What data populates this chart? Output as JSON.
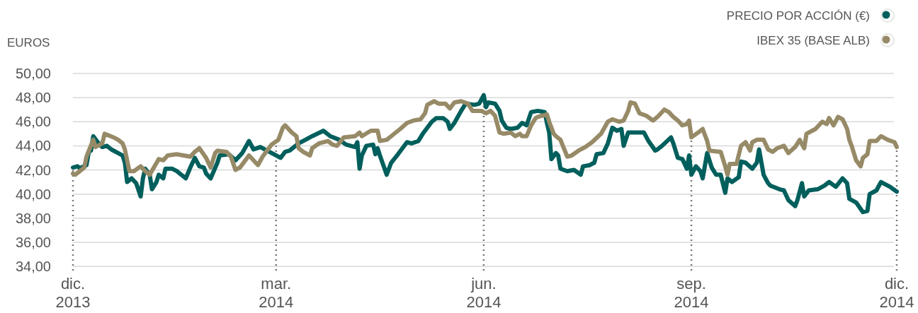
{
  "chart_data": {
    "type": "line",
    "ylabel": "EUROS",
    "legend": "top right",
    "grid": "y",
    "line_style": "solid",
    "marker": "none",
    "xlim": [
      "2013-12-01",
      "2014-12-01"
    ],
    "xticks": [
      {
        "value": "2013-12-01",
        "label": "dic. 2013"
      },
      {
        "value": "2014-03-01",
        "label": "mar. 2014"
      },
      {
        "value": "2014-06-01",
        "label": "jun. 2014"
      },
      {
        "value": "2014-09-01",
        "label": "sep. 2014"
      },
      {
        "value": "2014-12-01",
        "label": "dic. 2014"
      }
    ],
    "ref_lines": [
      {
        "axis": "x",
        "value": "2013-12-01",
        "color": "#777777",
        "line_style": "dotted"
      },
      {
        "axis": "x",
        "value": "2014-03-01",
        "color": "#777777",
        "line_style": "dotted"
      },
      {
        "axis": "x",
        "value": "2014-06-01",
        "color": "#777777",
        "line_style": "dotted"
      },
      {
        "axis": "x",
        "value": "2014-09-01",
        "color": "#777777",
        "line_style": "dotted"
      },
      {
        "axis": "x",
        "value": "2014-12-01",
        "color": "#777777",
        "line_style": "dotted"
      }
    ],
    "ylim": [
      34,
      50
    ],
    "yticks": [
      {
        "value": 34,
        "label": "34,00"
      },
      {
        "value": 36,
        "label": "36,00"
      },
      {
        "value": 38,
        "label": "38,00"
      },
      {
        "value": 40,
        "label": "40,00"
      },
      {
        "value": 42,
        "label": "42,00"
      },
      {
        "value": 44,
        "label": "44,00"
      },
      {
        "value": 46,
        "label": "46,00"
      },
      {
        "value": 48,
        "label": "48,00"
      },
      {
        "value": 50,
        "label": "50,00"
      }
    ],
    "series": [
      {
        "name": "PRECIO POR ACCIÓN (€)",
        "color": "#005f5c",
        "x": [
          "2013-12-01",
          "2013-12-03",
          "2013-12-04",
          "2013-12-07",
          "2013-12-08",
          "2013-12-09",
          "2013-12-10",
          "2013-12-12",
          "2013-12-14",
          "2013-12-16",
          "2013-12-18",
          "2013-12-21",
          "2013-12-23",
          "2013-12-24",
          "2013-12-25",
          "2013-12-27",
          "2013-12-29",
          "2013-12-31",
          "2014-01-01",
          "2014-01-02",
          "2014-01-04",
          "2014-01-05",
          "2014-01-07",
          "2014-01-08",
          "2014-01-10",
          "2014-01-11",
          "2014-01-14",
          "2014-01-16",
          "2014-01-20",
          "2014-01-22",
          "2014-01-24",
          "2014-01-26",
          "2014-01-28",
          "2014-01-29",
          "2014-01-31",
          "2014-02-03",
          "2014-02-04",
          "2014-02-08",
          "2014-02-11",
          "2014-02-14",
          "2014-02-17",
          "2014-02-19",
          "2014-02-22",
          "2014-02-25",
          "2014-03-03",
          "2014-03-05",
          "2014-03-07",
          "2014-03-11",
          "2014-03-14",
          "2014-03-17",
          "2014-03-22",
          "2014-03-25",
          "2014-03-29",
          "2014-04-01",
          "2014-04-05",
          "2014-04-06",
          "2014-04-07",
          "2014-04-08",
          "2014-04-10",
          "2014-04-13",
          "2014-04-14",
          "2014-04-15",
          "2014-04-16",
          "2014-04-19",
          "2014-04-21",
          "2014-04-24",
          "2014-04-26",
          "2014-04-28",
          "2014-04-30",
          "2014-05-03",
          "2014-05-05",
          "2014-05-09",
          "2014-05-11",
          "2014-05-14",
          "2014-05-16",
          "2014-05-17",
          "2014-05-19",
          "2014-05-22",
          "2014-05-24",
          "2014-05-28",
          "2014-05-30",
          "2014-06-01",
          "2014-06-02",
          "2014-06-03",
          "2014-06-06",
          "2014-06-08",
          "2014-06-09",
          "2014-06-11",
          "2014-06-13",
          "2014-06-16",
          "2014-06-18",
          "2014-06-20",
          "2014-06-22",
          "2014-06-25",
          "2014-06-28",
          "2014-06-29",
          "2014-06-30",
          "2014-07-01",
          "2014-07-03",
          "2014-07-04",
          "2014-07-05",
          "2014-07-08",
          "2014-07-11",
          "2014-07-14",
          "2014-07-15",
          "2014-07-18",
          "2014-07-20",
          "2014-07-21",
          "2014-07-24",
          "2014-07-26",
          "2014-07-28",
          "2014-07-30",
          "2014-08-01",
          "2014-08-02",
          "2014-08-04",
          "2014-08-07",
          "2014-08-11",
          "2014-08-13",
          "2014-08-16",
          "2014-08-17",
          "2014-08-19",
          "2014-08-23",
          "2014-08-24",
          "2014-08-26",
          "2014-08-28",
          "2014-08-30",
          "2014-08-31",
          "2014-09-01",
          "2014-09-03",
          "2014-09-05",
          "2014-09-06",
          "2014-09-08",
          "2014-09-10",
          "2014-09-12",
          "2014-09-14",
          "2014-09-16",
          "2014-09-17",
          "2014-09-19",
          "2014-09-22",
          "2014-09-23",
          "2014-09-25",
          "2014-09-28",
          "2014-09-30",
          "2014-10-01",
          "2014-10-03",
          "2014-10-05",
          "2014-10-06",
          "2014-10-10",
          "2014-10-12",
          "2014-10-14",
          "2014-10-17",
          "2014-10-18",
          "2014-10-20",
          "2014-10-21",
          "2014-10-23",
          "2014-10-27",
          "2014-10-30",
          "2014-11-01",
          "2014-11-04",
          "2014-11-07",
          "2014-11-09",
          "2014-11-10",
          "2014-11-13",
          "2014-11-16",
          "2014-11-18",
          "2014-11-19",
          "2014-11-22",
          "2014-11-24",
          "2014-11-28",
          "2014-12-01"
        ],
        "values": [
          42.2,
          42.3,
          42.15,
          42.4,
          43.5,
          43.6,
          44.8,
          44.3,
          43.9,
          44.0,
          43.7,
          43.4,
          43.2,
          42.6,
          41.0,
          41.3,
          40.9,
          39.8,
          41.3,
          42.1,
          41.6,
          40.4,
          41.0,
          41.6,
          41.3,
          42.1,
          42.1,
          41.9,
          41.3,
          42.2,
          43.0,
          42.3,
          42.2,
          41.7,
          41.3,
          42.6,
          43.2,
          43.3,
          42.8,
          43.4,
          44.4,
          43.7,
          43.9,
          43.6,
          43.0,
          43.5,
          43.6,
          44.2,
          44.5,
          44.8,
          45.25,
          44.8,
          44.5,
          44.1,
          43.9,
          44.3,
          42.1,
          43.2,
          44.0,
          44.1,
          43.3,
          43.8,
          43.2,
          41.6,
          42.6,
          43.3,
          43.8,
          44.3,
          44.2,
          44.4,
          45.0,
          46.0,
          46.3,
          46.3,
          46.0,
          45.4,
          45.9,
          46.9,
          47.5,
          47.4,
          47.5,
          48.2,
          47.2,
          47.6,
          47.5,
          46.9,
          46.1,
          45.5,
          45.4,
          45.5,
          45.9,
          45.7,
          46.8,
          46.9,
          46.8,
          45.9,
          45.1,
          42.9,
          43.4,
          43.2,
          42.1,
          41.9,
          42.0,
          41.6,
          42.3,
          42.4,
          42.6,
          43.3,
          43.4,
          44.2,
          45.5,
          45.25,
          45.4,
          44.0,
          45.1,
          45.1,
          45.1,
          44.4,
          43.6,
          43.7,
          44.0,
          44.7,
          44.2,
          43.0,
          42.9,
          42.1,
          43.2,
          41.6,
          42.3,
          41.9,
          41.3,
          43.4,
          42.2,
          41.6,
          41.6,
          40.1,
          41.3,
          41.0,
          41.4,
          42.7,
          42.6,
          42.1,
          42.6,
          43.7,
          41.6,
          40.9,
          40.7,
          40.4,
          40.3,
          39.5,
          39.0,
          39.5,
          40.9,
          39.8,
          40.3,
          40.4,
          40.7,
          41.0,
          40.6,
          41.3,
          40.9,
          39.6,
          39.3,
          38.5,
          38.6,
          40.0,
          40.3,
          41.0,
          40.6,
          40.2
        ]
      },
      {
        "name": "IBEX 35 (BASE ALB)",
        "color": "#978a67",
        "x": [
          "2013-12-01",
          "2013-12-02",
          "2013-12-06",
          "2013-12-07",
          "2013-12-10",
          "2013-12-11",
          "2013-12-14",
          "2013-12-15",
          "2013-12-19",
          "2013-12-21",
          "2013-12-23",
          "2013-12-24",
          "2013-12-26",
          "2013-12-28",
          "2013-12-31",
          "2014-01-02",
          "2014-01-04",
          "2014-01-08",
          "2014-01-10",
          "2014-01-12",
          "2014-01-16",
          "2014-01-19",
          "2014-01-22",
          "2014-01-24",
          "2014-01-26",
          "2014-01-29",
          "2014-01-31",
          "2014-02-02",
          "2014-02-03",
          "2014-02-07",
          "2014-02-09",
          "2014-02-11",
          "2014-02-13",
          "2014-02-17",
          "2014-02-21",
          "2014-02-23",
          "2014-02-27",
          "2014-03-02",
          "2014-03-04",
          "2014-03-05",
          "2014-03-08",
          "2014-03-10",
          "2014-03-11",
          "2014-03-13",
          "2014-03-16",
          "2014-03-17",
          "2014-03-20",
          "2014-03-24",
          "2014-03-26",
          "2014-03-28",
          "2014-03-31",
          "2014-04-05",
          "2014-04-07",
          "2014-04-08",
          "2014-04-12",
          "2014-04-15",
          "2014-04-16",
          "2014-04-19",
          "2014-04-21",
          "2014-04-25",
          "2014-04-28",
          "2014-05-01",
          "2014-05-04",
          "2014-05-06",
          "2014-05-07",
          "2014-05-10",
          "2014-05-12",
          "2014-05-15",
          "2014-05-17",
          "2014-05-19",
          "2014-05-22",
          "2014-05-25",
          "2014-05-27",
          "2014-05-31",
          "2014-06-02",
          "2014-06-04",
          "2014-06-06",
          "2014-06-08",
          "2014-06-10",
          "2014-06-13",
          "2014-06-15",
          "2014-06-17",
          "2014-06-18",
          "2014-06-20",
          "2014-06-22",
          "2014-06-24",
          "2014-06-25",
          "2014-06-29",
          "2014-06-30",
          "2014-07-02",
          "2014-07-03",
          "2014-07-05",
          "2014-07-08",
          "2014-07-10",
          "2014-07-13",
          "2014-07-16",
          "2014-07-19",
          "2014-07-23",
          "2014-07-26",
          "2014-07-28",
          "2014-07-31",
          "2014-08-02",
          "2014-08-04",
          "2014-08-05",
          "2014-08-07",
          "2014-08-09",
          "2014-08-12",
          "2014-08-15",
          "2014-08-17",
          "2014-08-20",
          "2014-08-22",
          "2014-08-24",
          "2014-08-26",
          "2014-08-28",
          "2014-08-30",
          "2014-08-31",
          "2014-09-01",
          "2014-09-04",
          "2014-09-06",
          "2014-09-08",
          "2014-09-09",
          "2014-09-14",
          "2014-09-16",
          "2014-09-17",
          "2014-09-18",
          "2014-09-21",
          "2014-09-23",
          "2014-09-25",
          "2014-09-27",
          "2014-09-28",
          "2014-09-30",
          "2014-10-03",
          "2014-10-05",
          "2014-10-07",
          "2014-10-09",
          "2014-10-12",
          "2014-10-14",
          "2014-10-17",
          "2014-10-19",
          "2014-10-21",
          "2014-10-22",
          "2014-10-26",
          "2014-10-29",
          "2014-10-31",
          "2014-11-01",
          "2014-11-03",
          "2014-11-05",
          "2014-11-07",
          "2014-11-09",
          "2014-11-10",
          "2014-11-11",
          "2014-11-13",
          "2014-11-15",
          "2014-11-16",
          "2014-11-18",
          "2014-11-19",
          "2014-11-22",
          "2014-11-24",
          "2014-11-27",
          "2014-11-30",
          "2014-12-01"
        ],
        "values": [
          41.7,
          41.6,
          42.2,
          43.1,
          44.5,
          43.9,
          44.2,
          45.0,
          44.7,
          44.5,
          44.2,
          43.7,
          41.9,
          41.9,
          42.3,
          41.9,
          41.6,
          42.9,
          42.8,
          43.2,
          43.3,
          43.2,
          43.1,
          43.5,
          43.8,
          43.0,
          42.2,
          43.4,
          43.6,
          43.5,
          43.1,
          42.0,
          42.2,
          43.2,
          42.4,
          43.1,
          44.1,
          44.5,
          45.5,
          45.7,
          45.1,
          44.8,
          43.8,
          43.5,
          43.2,
          43.8,
          44.2,
          44.4,
          44.1,
          44.0,
          44.7,
          44.8,
          45.1,
          44.8,
          45.25,
          45.25,
          44.4,
          44.5,
          44.8,
          45.4,
          45.9,
          46.1,
          46.2,
          46.7,
          47.4,
          47.7,
          47.5,
          47.5,
          47.1,
          47.6,
          47.7,
          47.5,
          46.9,
          46.9,
          46.7,
          46.9,
          46.5,
          45.1,
          45.0,
          45.1,
          44.8,
          45.0,
          44.8,
          44.8,
          45.7,
          46.3,
          46.4,
          46.6,
          46.0,
          45.0,
          44.8,
          44.5,
          43.1,
          43.2,
          43.6,
          43.9,
          44.3,
          45.0,
          46.0,
          46.2,
          46.0,
          46.1,
          46.9,
          47.6,
          47.5,
          46.7,
          46.5,
          46.1,
          46.4,
          47.0,
          46.8,
          46.4,
          46.1,
          45.7,
          45.8,
          46.1,
          44.7,
          45.1,
          45.4,
          44.4,
          43.6,
          43.5,
          42.3,
          41.6,
          42.5,
          42.5,
          44.0,
          44.3,
          43.6,
          44.3,
          44.5,
          44.5,
          43.7,
          43.5,
          43.8,
          44.0,
          43.4,
          43.9,
          44.5,
          43.8,
          45.0,
          45.4,
          46.0,
          45.8,
          46.3,
          45.7,
          46.4,
          46.2,
          45.4,
          44.5,
          44.0,
          42.8,
          42.3,
          43.0,
          43.3,
          44.4,
          44.4,
          44.8,
          44.5,
          44.3,
          43.9
        ]
      }
    ]
  }
}
